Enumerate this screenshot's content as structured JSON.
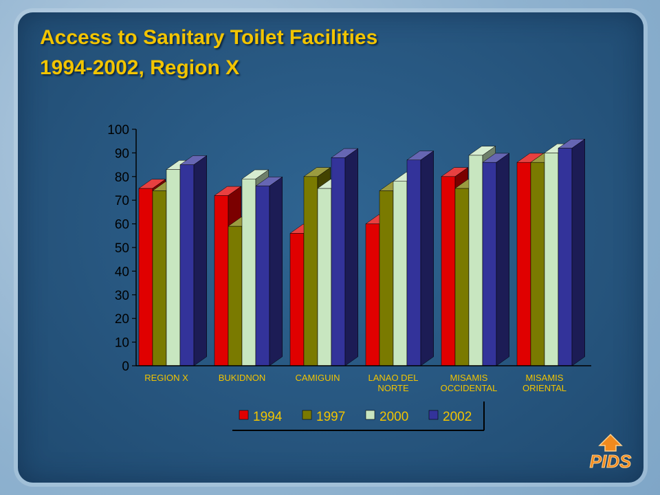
{
  "slide": {
    "title_line1": "Access to Sanitary Toilet Facilities",
    "title_line2": "1994-2002, Region X",
    "logo_text": "PIDS"
  },
  "colors": {
    "1994": "#e00000",
    "1997": "#7a7a00",
    "2000": "#c8e6c0",
    "2002": "#33339a",
    "wall": "#1a1a50",
    "title": "#f2c400"
  },
  "chart_data": {
    "type": "bar",
    "categories": [
      [
        "REGION X"
      ],
      [
        "BUKIDNON"
      ],
      [
        "CAMIGUIN"
      ],
      [
        "LANAO DEL",
        "NORTE"
      ],
      [
        "MISAMIS",
        "OCCIDENTAL"
      ],
      [
        "MISAMIS",
        "ORIENTAL"
      ]
    ],
    "series": [
      {
        "name": "1994",
        "values": [
          75,
          72,
          56,
          60,
          80,
          86
        ]
      },
      {
        "name": "1997",
        "values": [
          74,
          59,
          80,
          74,
          75,
          86
        ]
      },
      {
        "name": "2000",
        "values": [
          83,
          79,
          75,
          78,
          89,
          90
        ]
      },
      {
        "name": "2002",
        "values": [
          85,
          76,
          88,
          87,
          86,
          92
        ]
      }
    ],
    "yticks": [
      0,
      10,
      20,
      30,
      40,
      50,
      60,
      70,
      80,
      90,
      100
    ],
    "ylim": [
      0,
      100
    ],
    "legend_position": "bottom",
    "style": "3d-clustered-bar"
  }
}
